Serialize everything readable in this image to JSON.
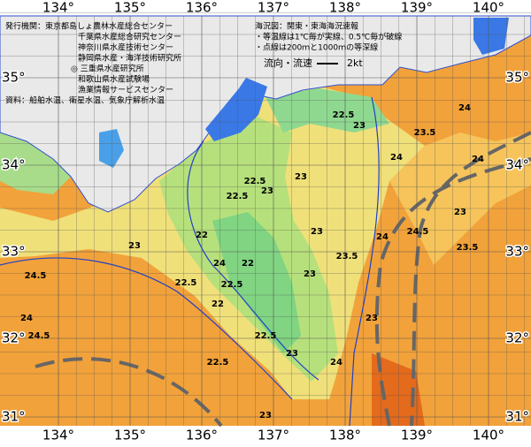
{
  "map": {
    "lon_labels": [
      "134°",
      "135°",
      "136°",
      "137°",
      "138°",
      "139°",
      "140°"
    ],
    "lat_labels": [
      "35°",
      "34°",
      "33°",
      "32°",
      "31°"
    ],
    "publisher_block": [
      "発行機関：東京都島しょ農林水産総合センター",
      "千葉県水産総合研究センター",
      "神奈川県水産技術センター",
      "静岡県水産・海洋技術研究所",
      "◎ 三重県水産研究所",
      "和歌山県水産試験場",
      "漁業情報サービスセンター",
      "資料：船舶水温、衛星水温、気象庁解析水温"
    ],
    "info_block": [
      "海況図：関東・東海海況速報",
      "・等温線は1℃毎が実線、0.5℃毎が破線",
      "・点線は200ｍと1000ｍの等深線"
    ],
    "current_legend": {
      "label": "流向・流速",
      "unit": "2kt"
    },
    "contour_labels": [
      "22.5",
      "23",
      "24",
      "23.5",
      "24",
      "22.5",
      "23",
      "23",
      "22.5",
      "23",
      "22",
      "22",
      "22.5",
      "22.5",
      "23",
      "24.5",
      "24",
      "24.5",
      "24.5",
      "23",
      "24",
      "24",
      "22",
      "22.5",
      "23.5",
      "23",
      "24",
      "23",
      "22.5",
      "23",
      "23.5",
      "24",
      "23"
    ]
  }
}
